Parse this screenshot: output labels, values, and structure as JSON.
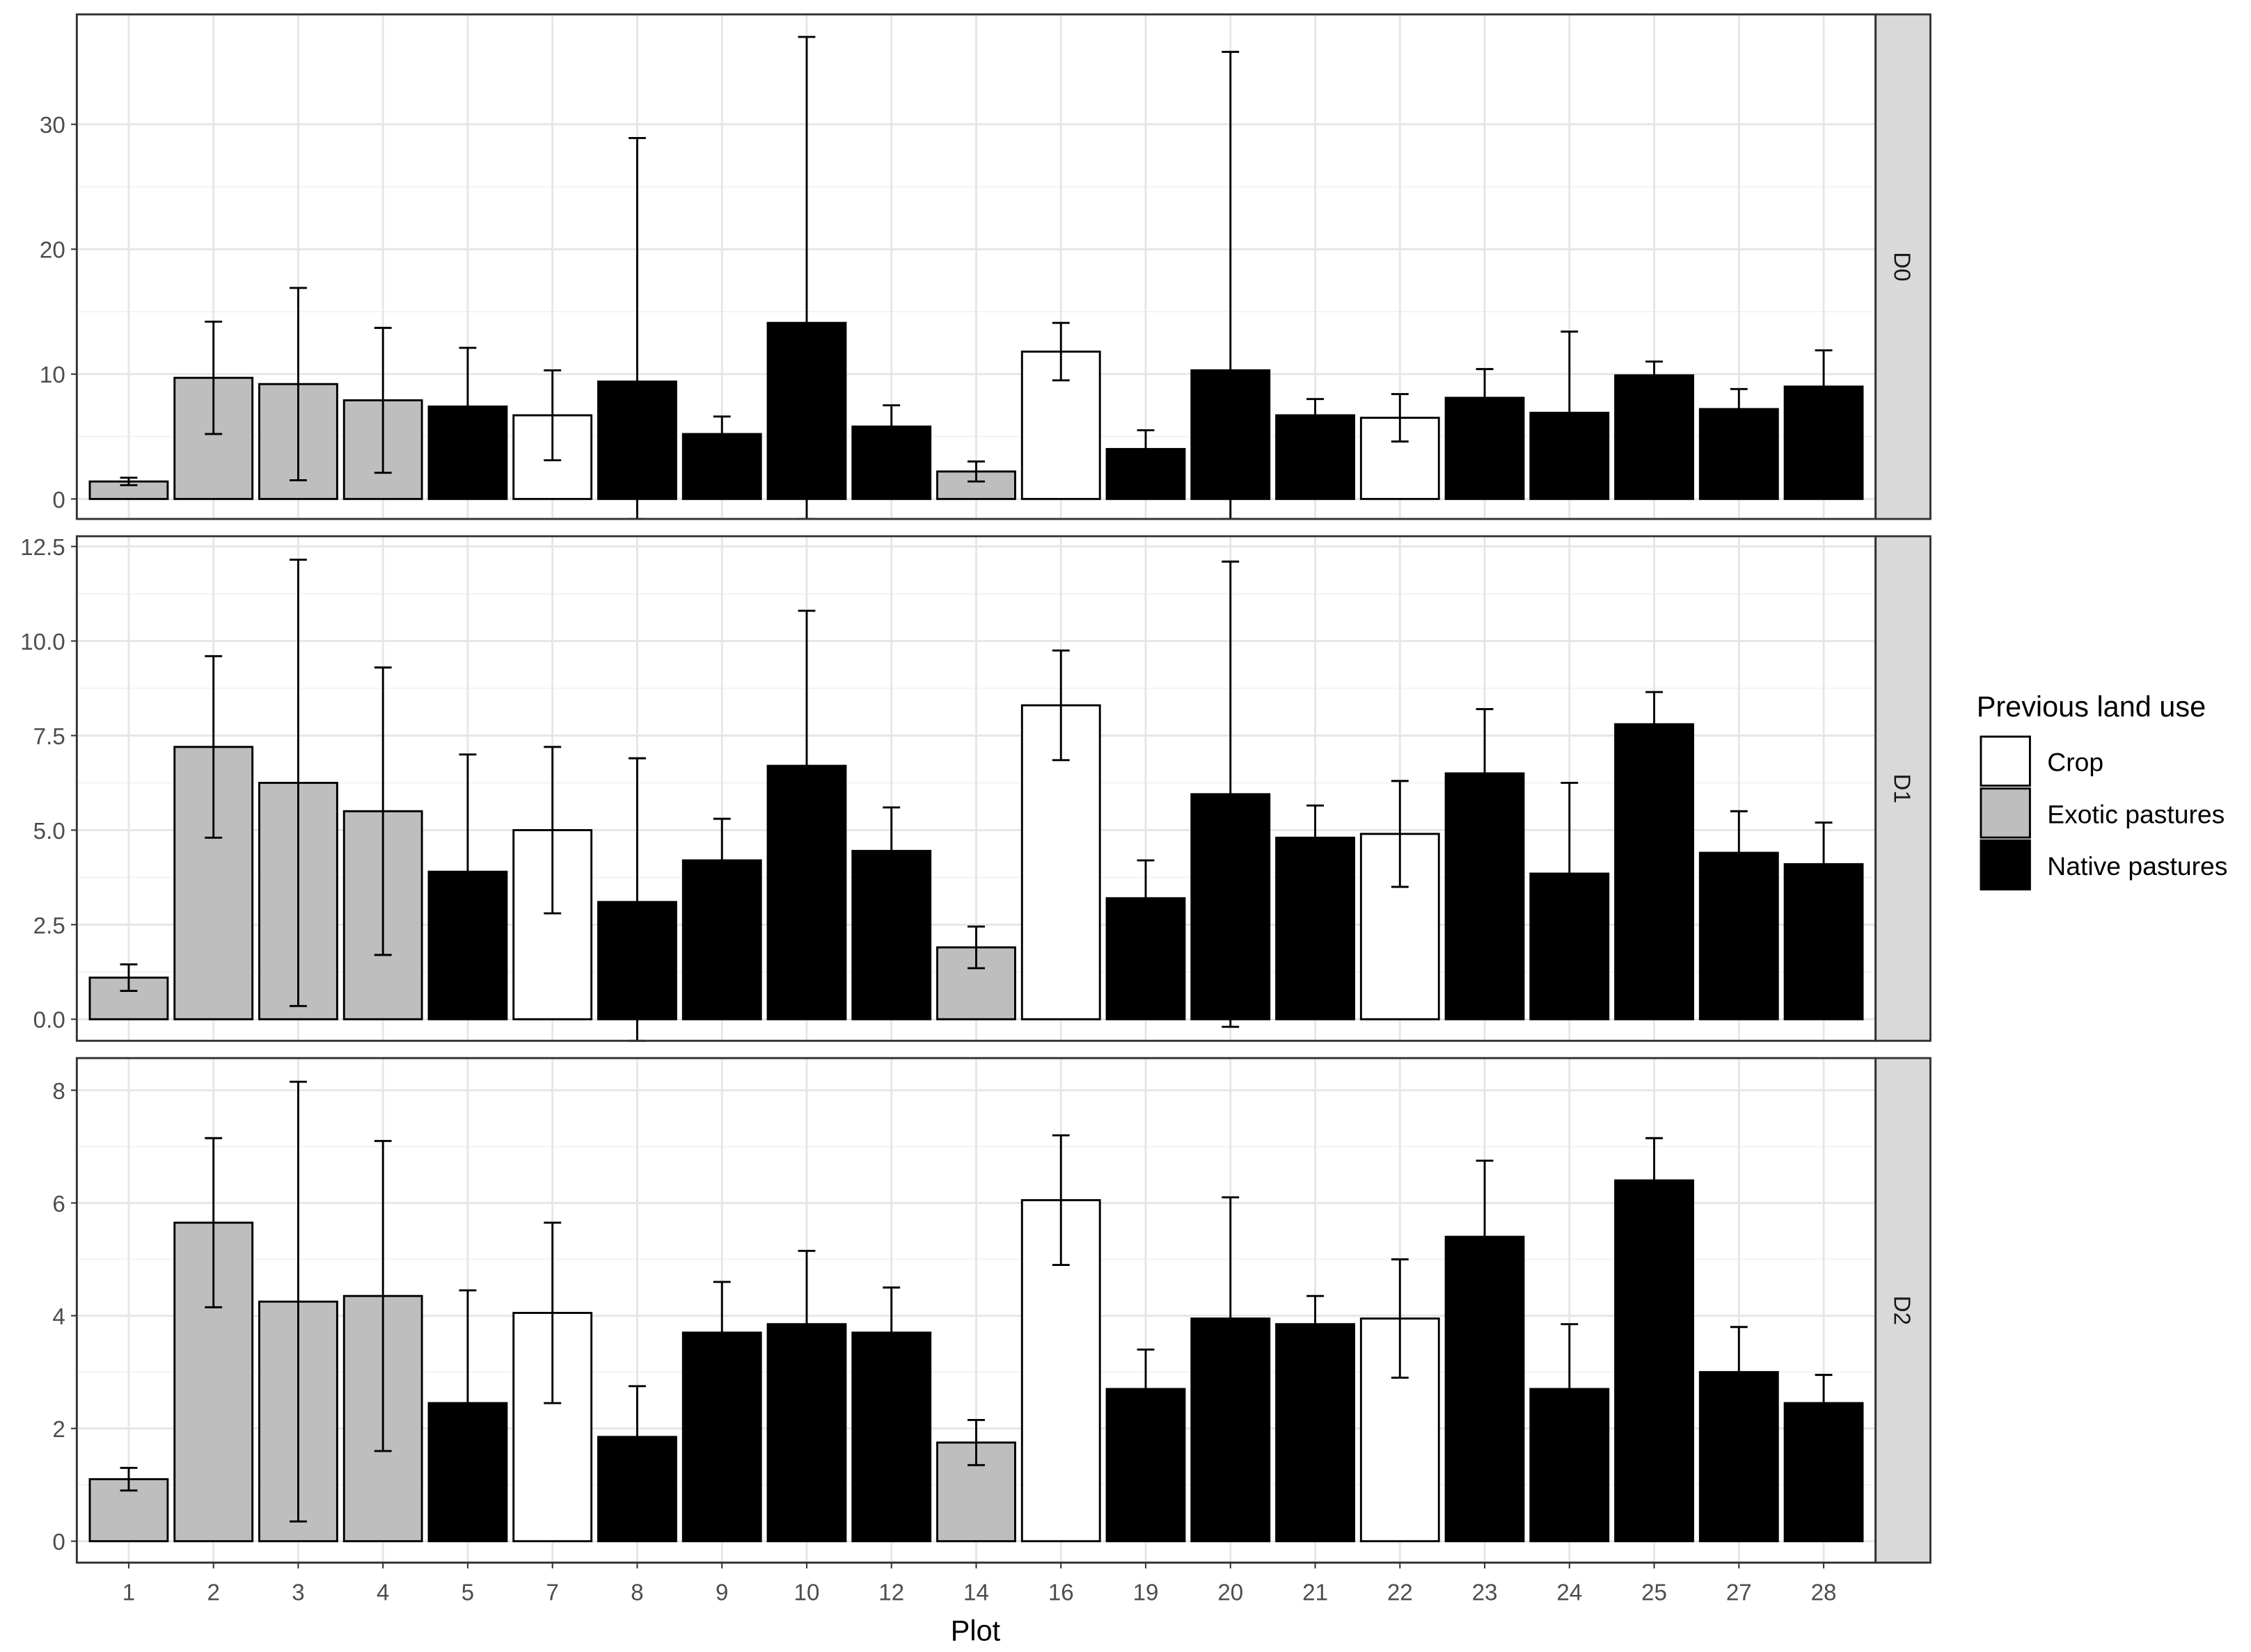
{
  "chart_data": {
    "type": "bar",
    "xlabel": "Plot",
    "ylabel": "",
    "categories": [
      "1",
      "2",
      "3",
      "4",
      "5",
      "7",
      "8",
      "9",
      "10",
      "12",
      "14",
      "16",
      "19",
      "20",
      "21",
      "22",
      "23",
      "24",
      "25",
      "27",
      "28"
    ],
    "land_use": [
      "Exotic pastures",
      "Exotic pastures",
      "Exotic pastures",
      "Exotic pastures",
      "Native pastures",
      "Crop",
      "Native pastures",
      "Native pastures",
      "Native pastures",
      "Native pastures",
      "Exotic pastures",
      "Crop",
      "Native pastures",
      "Native pastures",
      "Native pastures",
      "Crop",
      "Native pastures",
      "Native pastures",
      "Native pastures",
      "Native pastures",
      "Native pastures"
    ],
    "legend": {
      "title": "Previous land use",
      "position": "right",
      "entries": [
        {
          "label": "Crop",
          "color": "#ffffff"
        },
        {
          "label": "Exotic pastures",
          "color": "#bebebe"
        },
        {
          "label": "Native pastures",
          "color": "#000000"
        }
      ]
    },
    "grid": true,
    "panels": [
      {
        "strip": "D0",
        "ylim": [
          -1.6,
          38.8
        ],
        "ticks": [
          0,
          10,
          20,
          30
        ],
        "tick_labels": [
          "0",
          "10",
          "20",
          "30"
        ],
        "values": [
          1.4,
          9.7,
          9.2,
          7.9,
          7.4,
          6.7,
          9.4,
          5.2,
          14.1,
          5.8,
          2.2,
          11.8,
          4.0,
          10.3,
          6.7,
          6.5,
          8.1,
          6.9,
          9.9,
          7.2,
          9.0
        ],
        "errors": [
          0.3,
          4.5,
          7.7,
          5.8,
          4.7,
          3.6,
          19.5,
          1.4,
          22.9,
          1.7,
          0.8,
          2.3,
          1.5,
          25.5,
          1.3,
          1.9,
          2.3,
          6.5,
          1.1,
          1.6,
          2.9
        ]
      },
      {
        "strip": "D1",
        "ylim": [
          -0.57,
          12.77
        ],
        "ticks": [
          0,
          2.5,
          5,
          7.5,
          10,
          12.5
        ],
        "tick_labels": [
          "0.0",
          "2.5",
          "5.0",
          "7.5",
          "10.0",
          "12.5"
        ],
        "values": [
          1.1,
          7.2,
          6.25,
          5.5,
          3.9,
          5.0,
          3.1,
          4.2,
          6.7,
          4.45,
          1.9,
          8.3,
          3.2,
          5.95,
          4.8,
          4.9,
          6.5,
          3.85,
          7.8,
          4.4,
          4.1
        ],
        "errors": [
          0.35,
          2.4,
          5.9,
          3.8,
          3.1,
          2.2,
          3.8,
          1.1,
          4.1,
          1.15,
          0.55,
          1.45,
          1.0,
          6.15,
          0.85,
          1.4,
          1.7,
          2.4,
          0.85,
          1.1,
          1.1
        ]
      },
      {
        "strip": "D2",
        "ylim": [
          -0.38,
          8.57
        ],
        "ticks": [
          0,
          2,
          4,
          6,
          8
        ],
        "tick_labels": [
          "0",
          "2",
          "4",
          "6",
          "8"
        ],
        "values": [
          1.1,
          5.65,
          4.25,
          4.35,
          2.45,
          4.05,
          1.85,
          3.7,
          3.85,
          3.7,
          1.75,
          6.05,
          2.7,
          3.95,
          3.85,
          3.95,
          5.4,
          2.7,
          6.4,
          3.0,
          2.45
        ],
        "errors": [
          0.2,
          1.5,
          3.9,
          2.75,
          2.0,
          1.6,
          0.9,
          0.9,
          1.3,
          0.8,
          0.4,
          1.15,
          0.7,
          2.15,
          0.5,
          1.05,
          1.35,
          1.15,
          0.75,
          0.8,
          0.5
        ]
      }
    ]
  }
}
